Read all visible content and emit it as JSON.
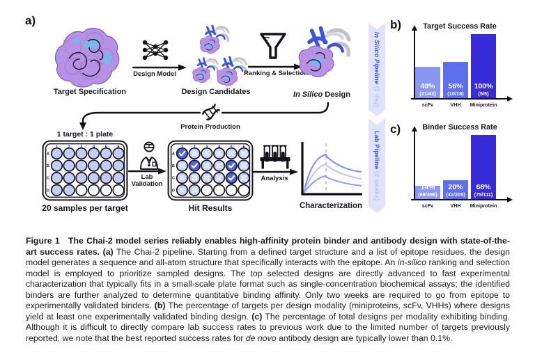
{
  "panel_a": {
    "label": "a)",
    "top_row": {
      "target_label": "Target Specification",
      "design_model_label": "Design Model",
      "candidates_label": "Design Candidates",
      "ranking_label": "Ranking & Selection",
      "insilico_label_italic": "In Silico",
      "insilico_label_rest": " Design"
    },
    "ribbons": [
      {
        "title": "In Silico Pipeline",
        "suffix": " (1 day)"
      },
      {
        "title": "Lab Pipeline",
        "suffix": " (2 weeks)"
      }
    ],
    "protein_production_label": "Protein Production",
    "bottom_row": {
      "plate1_title": "1 target : 1 plate",
      "plate1_caption": "20 samples per target",
      "lab_validation_line1": "Lab",
      "lab_validation_line2": "Validation",
      "plate2_caption": "Hit Results",
      "analysis_label": "Analysis",
      "characterization_label": "Characterization",
      "plate_columns": [
        "1",
        "2",
        "3",
        "4",
        "5",
        "6"
      ],
      "plate_rows": [
        "A",
        "B",
        "C",
        "D"
      ],
      "plate1_wells": [
        "filled",
        "filled",
        "filled",
        "filled",
        "filled",
        "filled",
        "filled",
        "filled",
        "filled",
        "filled",
        "filled",
        "filled",
        "filled",
        "filled",
        "filled",
        "filled",
        "filled",
        "filled",
        "filled",
        "filled",
        "empty",
        "empty",
        "empty",
        "empty"
      ],
      "plate2_wells": [
        "check",
        "x",
        "x",
        "x",
        "x",
        "x",
        "x",
        "check",
        "x",
        "x",
        "check",
        "x",
        "x",
        "x",
        "x",
        "x",
        "check",
        "x",
        "x",
        "x",
        "empty",
        "empty",
        "empty",
        "empty"
      ]
    }
  },
  "chart_data": [
    {
      "id": "b",
      "type": "bar",
      "panel_label": "b)",
      "title": "Target Success Rate",
      "categories": [
        "scFv",
        "VHH",
        "Miniprotein"
      ],
      "values": [
        49,
        56,
        100
      ],
      "value_labels": [
        "49%",
        "56%",
        "100%"
      ],
      "fraction_labels": [
        "(21/43)",
        "(10/18)",
        "(5/5)"
      ],
      "bar_colors": [
        "#8A97F1",
        "#5E6FEE",
        "#3A2BD9"
      ],
      "ylim": [
        0,
        100
      ],
      "grid": false,
      "legend": "none"
    },
    {
      "id": "c",
      "type": "bar",
      "panel_label": "c)",
      "title": "Binder Success Rate",
      "categories": [
        "scFv",
        "VHH",
        "Miniprotein"
      ],
      "values": [
        14,
        20,
        68
      ],
      "value_labels": [
        "14%",
        "20%",
        "68%"
      ],
      "fraction_labels": [
        "(68/496)",
        "(41/205)",
        "(75/111)"
      ],
      "bar_colors": [
        "#8A97F1",
        "#5E6FEE",
        "#3A2BD9"
      ],
      "ylim": [
        0,
        100
      ],
      "grid": false,
      "legend": "none"
    }
  ],
  "colors": {
    "accent_blue": "#4353E9",
    "ribbon_bg": "#DFE3FC",
    "ribbon_suffix": "#BDC6F8",
    "well_filled": "#C3CDF5",
    "well_empty": "#FFFFFF",
    "well_hit": "#4E60ED",
    "well_x_fill": "#C9D3F8",
    "x_mark": "#EBEFFD",
    "check_mark": "#FFFFFF",
    "well_border": "#15151C",
    "curve_colors": [
      "#7B8CF2",
      "#BCC5F8",
      "#8D9CF4"
    ],
    "dashed_line": "#B6B6BC",
    "protein_purple": "#B691E5",
    "epitope_blue": "#7FB3EC"
  },
  "caption": {
    "segments": [
      {
        "t": "Figure 1  The Chai-2 model series reliably enables high-affinity protein binder and antibody design with state-of-the-art success rates. ",
        "b": 1
      },
      {
        "t": "(a)",
        "b": 1
      },
      {
        "t": " The Chai-2 pipeline.  Starting from a defined target structure and a list of epitope residues, the design model generates a sequence and all-atom structure that specifically interacts with the epitope. An "
      },
      {
        "t": "in-silico",
        "i": 1
      },
      {
        "t": " ranking and selection model is employed to prioritize sampled designs.  The top selected designs are directly advanced to fast experimental characterization that typically fits in a small-scale plate format such as single-concentration biochemical assays; the identified binders are further analyzed to determine quantitative binding affinity.  Only two weeks are required to go from epitope to experimentally validated binders. "
      },
      {
        "t": "(b)",
        "b": 1
      },
      {
        "t": " The percentage of targets per design modality (miniproteins, scFv, VHHs) where designs yield at least one experimentally validated binding design. "
      },
      {
        "t": "(c)",
        "b": 1
      },
      {
        "t": " The percentage of total designs per modality exhibiting binding.  Although it is difficult to directly compare lab success rates to previous work due to the limited number of targets previously reported, we note that the best reported success rates for "
      },
      {
        "t": "de novo",
        "i": 1
      },
      {
        "t": " antibody design are typically lower than 0.1%."
      }
    ]
  }
}
